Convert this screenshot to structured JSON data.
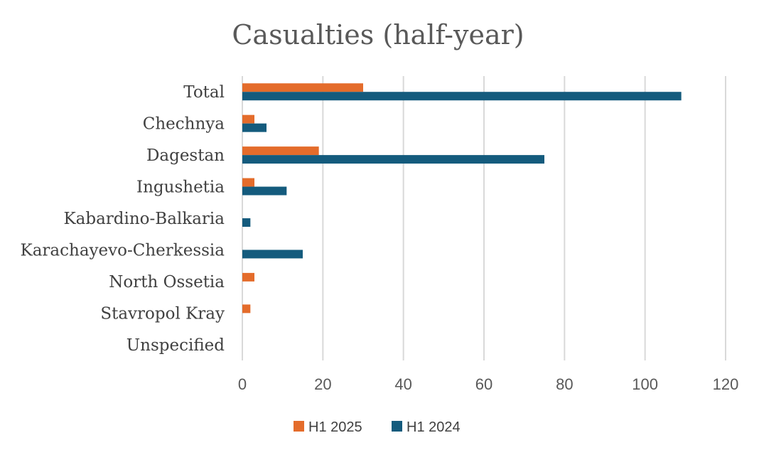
{
  "chart_data": {
    "type": "bar",
    "orientation": "horizontal",
    "title": "Casualties (half-year)",
    "categories": [
      "Total",
      "Chechnya",
      "Dagestan",
      "Ingushetia",
      "Kabardino-Balkaria",
      "Karachayevo-Cherkessia",
      "North Ossetia",
      "Stavropol Kray",
      "Unspecified"
    ],
    "series": [
      {
        "name": "H1 2025",
        "color": "#e46c2b",
        "values": [
          30,
          3,
          19,
          3,
          0,
          0,
          3,
          2,
          0
        ]
      },
      {
        "name": "H1 2024",
        "color": "#145b7d",
        "values": [
          109,
          6,
          75,
          11,
          2,
          15,
          0,
          0,
          0
        ]
      }
    ],
    "xlim": [
      0,
      120
    ],
    "xticks": [
      0,
      20,
      40,
      60,
      80,
      100,
      120
    ],
    "xlabel": "",
    "ylabel": "",
    "grid": "vertical",
    "legend": "bottom"
  }
}
